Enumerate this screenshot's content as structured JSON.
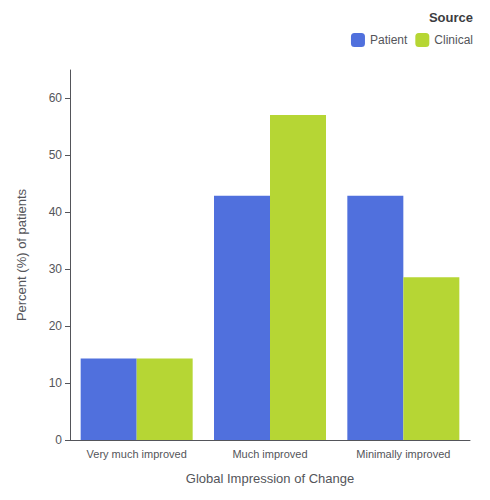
{
  "chart_data": {
    "type": "bar",
    "xlabel": "Global Impression of Change",
    "ylabel": "Percent (%) of patients",
    "legend_title": "Source",
    "categories": [
      "Very much improved",
      "Much improved",
      "Minimally improved"
    ],
    "series": [
      {
        "name": "Patient",
        "values": [
          14.3,
          42.9,
          42.9
        ]
      },
      {
        "name": "Clinical",
        "values": [
          14.3,
          57.1,
          28.6
        ]
      }
    ],
    "ylim": [
      0,
      65
    ],
    "yticks": [
      0,
      10,
      20,
      30,
      40,
      50,
      60
    ],
    "grid": false,
    "legend": "upper right"
  }
}
